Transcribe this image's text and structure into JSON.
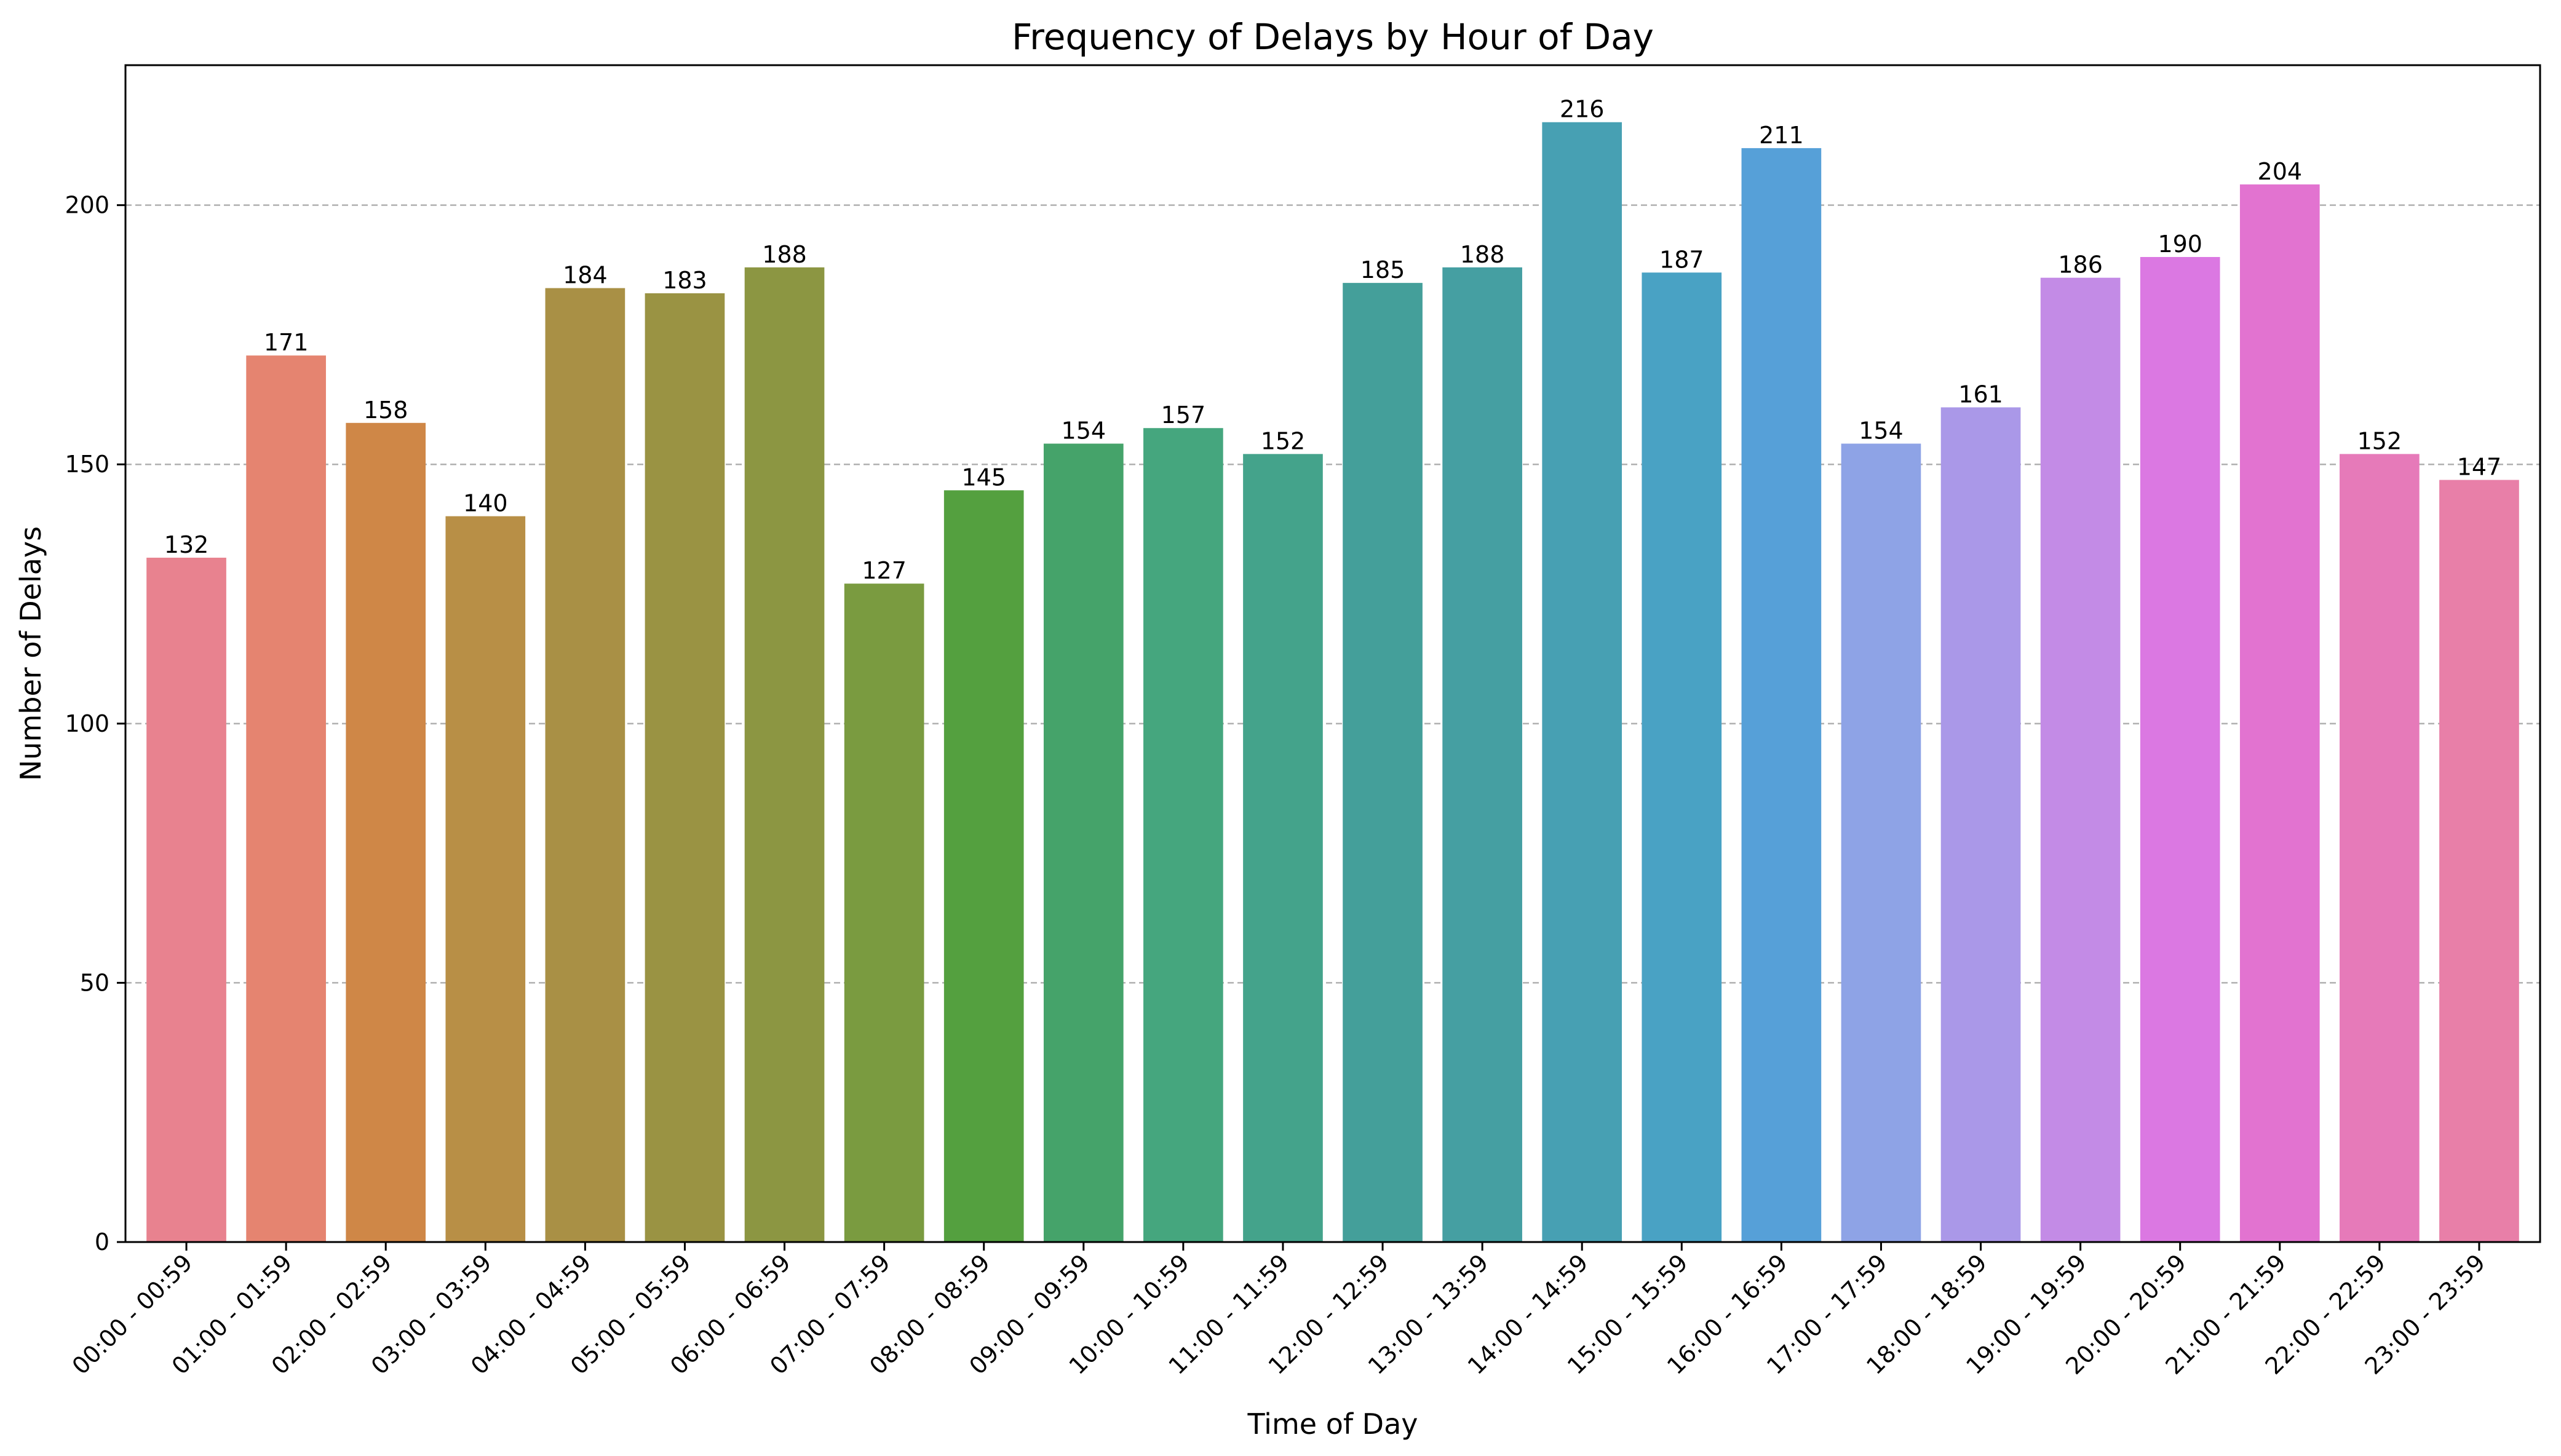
{
  "chart_data": {
    "type": "bar",
    "title": "Frequency of Delays by Hour of Day",
    "xlabel": "Time of Day",
    "ylabel": "Number of Delays",
    "ylim": [
      0,
      227
    ],
    "yticks": [
      0,
      50,
      100,
      150,
      200
    ],
    "grid": "y-dashed",
    "categories": [
      "00:00 - 00:59",
      "01:00 - 01:59",
      "02:00 - 02:59",
      "03:00 - 03:59",
      "04:00 - 04:59",
      "05:00 - 05:59",
      "06:00 - 06:59",
      "07:00 - 07:59",
      "08:00 - 08:59",
      "09:00 - 09:59",
      "10:00 - 10:59",
      "11:00 - 11:59",
      "12:00 - 12:59",
      "13:00 - 13:59",
      "14:00 - 14:59",
      "15:00 - 15:59",
      "16:00 - 16:59",
      "17:00 - 17:59",
      "18:00 - 18:59",
      "19:00 - 19:59",
      "20:00 - 20:59",
      "21:00 - 21:59",
      "22:00 - 22:59",
      "23:00 - 23:59"
    ],
    "values": [
      132,
      171,
      158,
      140,
      184,
      183,
      188,
      127,
      145,
      154,
      157,
      152,
      185,
      188,
      216,
      187,
      211,
      154,
      161,
      186,
      190,
      204,
      152,
      147
    ],
    "colors": [
      "#e8828f",
      "#e58470",
      "#cf8747",
      "#b88f46",
      "#a99045",
      "#9a9343",
      "#8c9642",
      "#7a9b40",
      "#54a03f",
      "#45a36a",
      "#45a67e",
      "#44a38b",
      "#449f9a",
      "#459fa2",
      "#47a0b3",
      "#49a2c4",
      "#56a0d8",
      "#8ea3e6",
      "#aa98e8",
      "#c38be6",
      "#db78e2",
      "#e273d0",
      "#e67ab9",
      "#e87fa8"
    ]
  }
}
